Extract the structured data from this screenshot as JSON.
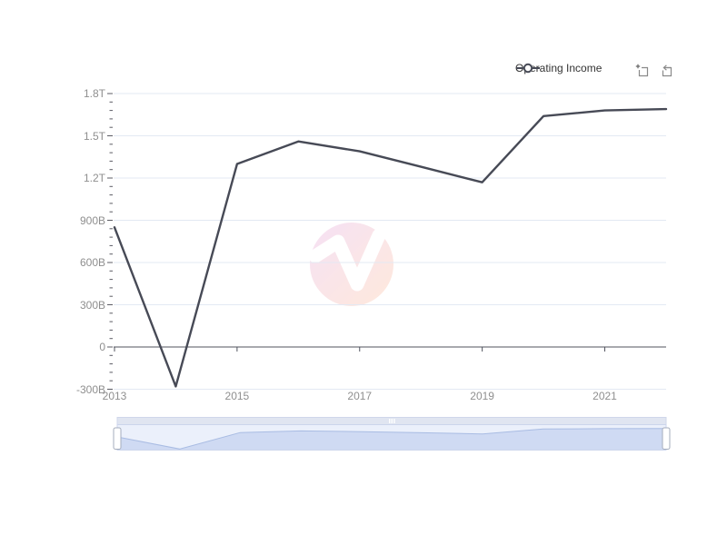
{
  "legend": {
    "label": "Operating Income"
  },
  "toolbox": {
    "datazoom_tooltip": "Data Zoom",
    "restore_tooltip": "Restore"
  },
  "watermark": {
    "name": "n-logo",
    "color_top_left": "#eec9ec",
    "color_bottom_right": "#ffd8c0"
  },
  "colors": {
    "series_line": "#474a56",
    "axis_line": "#50535e",
    "tick": "#5c5c64",
    "grid_line": "#e3e9f3",
    "axis_text": "#8f8f8f",
    "legend_text": "#333333",
    "toolbox_icon": "#757575",
    "slider_body_fill": "#ebf0fb",
    "slider_body_border": "#ccd5ec",
    "slider_area_fill": "#cfdaf3",
    "slider_line": "#a9bce3",
    "slider_bar_fill": "#e0e5f1",
    "slider_bar_border": "#cfd7ea",
    "slider_handle_fill": "#ffffff",
    "slider_handle_border": "#a5adbd"
  },
  "chart_data": {
    "type": "line",
    "title": "",
    "xlabel": "",
    "ylabel": "",
    "values_unit": "billions",
    "x": [
      2013,
      2014,
      2015,
      2016,
      2017,
      2018,
      2019,
      2020,
      2021,
      2022
    ],
    "series": [
      {
        "name": "Operating Income",
        "values_billions": [
          850,
          -280,
          1300,
          1460,
          1390,
          1280,
          1170,
          1640,
          1680,
          1690
        ]
      }
    ],
    "x_tick_labels": [
      "2013",
      "2015",
      "2017",
      "2019",
      "2021"
    ],
    "x_tick_years": [
      2013,
      2015,
      2017,
      2019,
      2021
    ],
    "y_tick_labels": [
      "1.8T",
      "1.5T",
      "1.2T",
      "900B",
      "600B",
      "300B",
      "0",
      "-300B"
    ],
    "y_tick_values_billions": [
      1800,
      1500,
      1200,
      900,
      600,
      300,
      0,
      -300
    ],
    "y_minor_tick_step_billions": 60,
    "ylim_billions": [
      -300,
      1800
    ],
    "grid": true,
    "legend_position": "top-right",
    "datazoom_slider": {
      "range_percent": [
        0,
        100
      ]
    }
  }
}
